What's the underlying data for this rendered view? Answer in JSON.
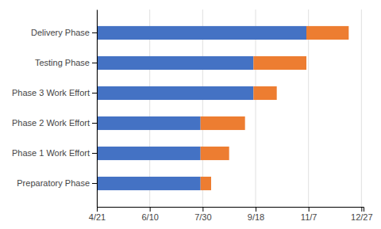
{
  "chart_data": {
    "type": "bar",
    "orientation": "horizontal",
    "stacked": true,
    "grid": true,
    "categories": [
      "Preparatory Phase",
      "Phase 1 Work Effort",
      "Phase 2 Work Effort",
      "Phase 3 Work Effort",
      "Testing Phase",
      "Delivery Phase"
    ],
    "series": [
      {
        "color": "#4472C4",
        "values": [
          98,
          98,
          98,
          148,
          148,
          198
        ]
      },
      {
        "color": "#ED7D31",
        "values": [
          10,
          27,
          42,
          22,
          50,
          40
        ]
      }
    ],
    "xlim": [
      0,
      252
    ],
    "xticks": [
      {
        "value": 0,
        "label": "4/21"
      },
      {
        "value": 50,
        "label": "6/10"
      },
      {
        "value": 100,
        "label": "7/30"
      },
      {
        "value": 150,
        "label": "9/18"
      },
      {
        "value": 200,
        "label": "11/7"
      },
      {
        "value": 250,
        "label": "12/27"
      }
    ]
  }
}
